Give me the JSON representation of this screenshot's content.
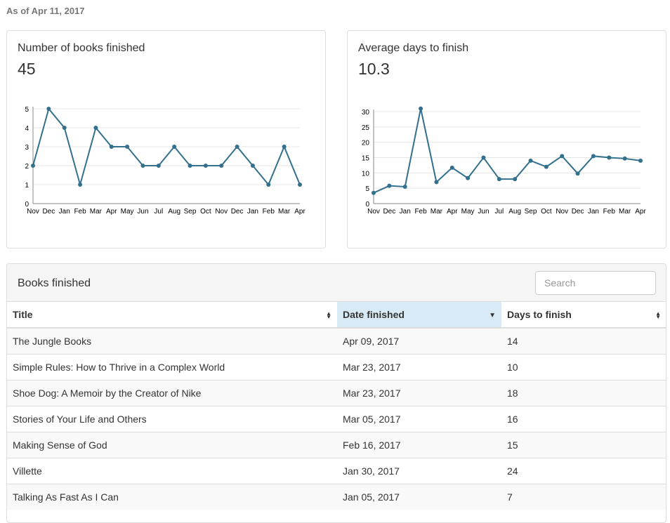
{
  "as_of": "As of Apr 11, 2017",
  "books_chart": {
    "title": "Number of books finished",
    "value": "45"
  },
  "days_chart": {
    "title": "Average days to finish",
    "value": "10.3"
  },
  "chart_data": [
    {
      "type": "line",
      "x": [
        "Nov",
        "Dec",
        "Jan",
        "Feb",
        "Mar",
        "Apr",
        "May",
        "Jun",
        "Jul",
        "Aug",
        "Sep",
        "Oct",
        "Nov",
        "Dec",
        "Jan",
        "Feb",
        "Mar",
        "Apr"
      ],
      "values": [
        2,
        5,
        4,
        1,
        4,
        3,
        3,
        2,
        2,
        3,
        2,
        2,
        2,
        3,
        2,
        1,
        3,
        1
      ],
      "yticks": [
        0,
        1,
        2,
        3,
        4,
        5
      ],
      "ylim": [
        0,
        5
      ],
      "grid": true,
      "color": "#33708e"
    },
    {
      "type": "line",
      "x": [
        "Nov",
        "Dec",
        "Jan",
        "Feb",
        "Mar",
        "Apr",
        "May",
        "Jun",
        "Jul",
        "Aug",
        "Sep",
        "Oct",
        "Nov",
        "Dec",
        "Jan",
        "Feb",
        "Mar",
        "Apr"
      ],
      "values": [
        3.5,
        5.8,
        5.5,
        31,
        7,
        11.7,
        8.3,
        15,
        8,
        8,
        14,
        12,
        15.5,
        9.8,
        15.5,
        15,
        14.7,
        14
      ],
      "yticks": [
        0,
        5,
        10,
        15,
        20,
        25,
        30
      ],
      "ylim": [
        0,
        31
      ],
      "grid": true,
      "color": "#33708e"
    }
  ],
  "table": {
    "title": "Books finished",
    "search_placeholder": "Search",
    "columns": [
      "Title",
      "Date finished",
      "Days to finish"
    ],
    "sort": {
      "column": "Date finished",
      "direction": "descending"
    },
    "rows": [
      [
        "The Jungle Books",
        "Apr 09, 2017",
        "14"
      ],
      [
        "Simple Rules: How to Thrive in a Complex World",
        "Mar 23, 2017",
        "10"
      ],
      [
        "Shoe Dog: A Memoir by the Creator of Nike",
        "Mar 23, 2017",
        "18"
      ],
      [
        "Stories of Your Life and Others",
        "Mar 05, 2017",
        "16"
      ],
      [
        "Making Sense of God",
        "Feb 16, 2017",
        "15"
      ],
      [
        "Villette",
        "Jan 30, 2017",
        "24"
      ],
      [
        "Talking As Fast As I Can",
        "Jan 05, 2017",
        "7"
      ]
    ]
  }
}
